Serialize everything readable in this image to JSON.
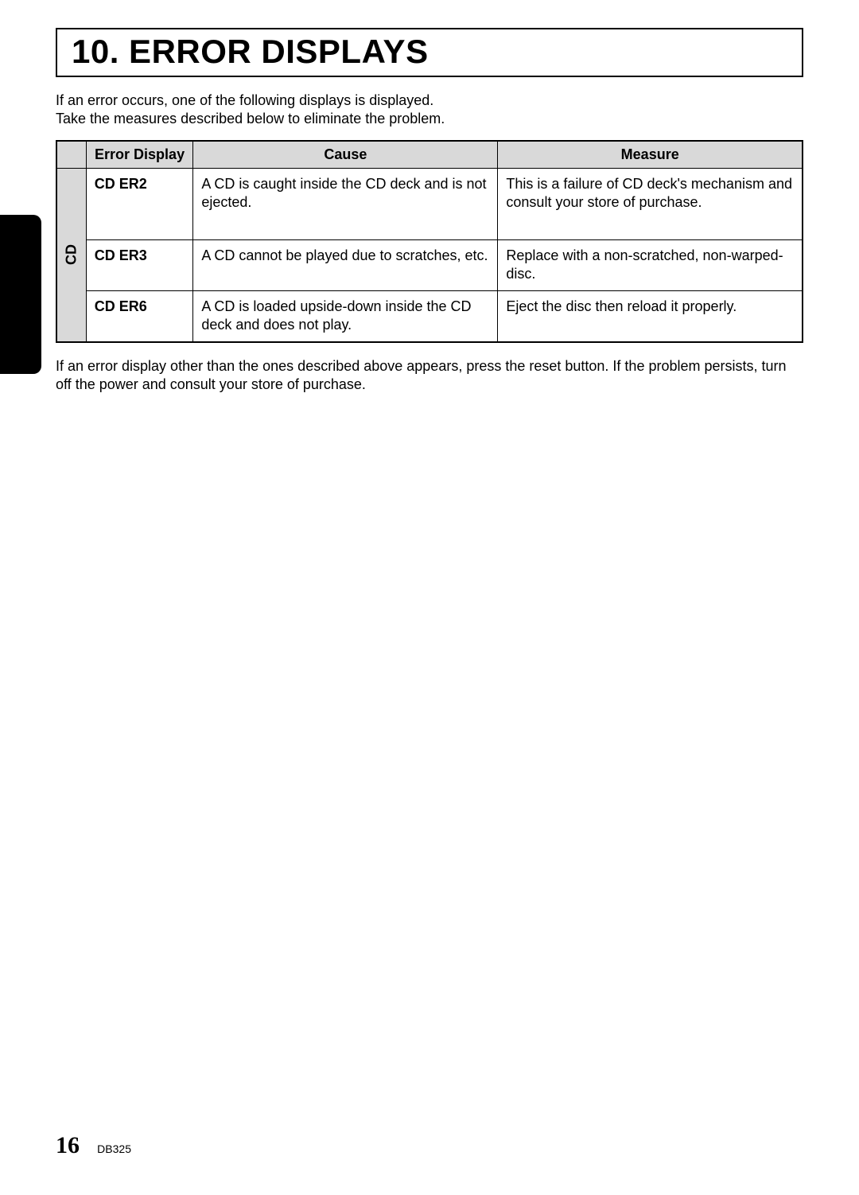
{
  "title": "10. ERROR DISPLAYS",
  "intro": {
    "line1": "If an error occurs, one of the following displays is displayed.",
    "line2": "Take the measures described below to eliminate the problem."
  },
  "table": {
    "headers": {
      "errorDisplay": "Error Display",
      "cause": "Cause",
      "measure": "Measure"
    },
    "groupLabel": "CD",
    "rows": [
      {
        "code": "CD ER2",
        "cause": "A CD is caught inside the CD deck and is not ejected.",
        "measure": "This is a failure of CD deck's mechanism and consult your store of purchase."
      },
      {
        "code": "CD ER3",
        "cause": "A CD cannot be played due to scratches, etc.",
        "measure": "Replace with a non-scratched, non-warped-disc."
      },
      {
        "code": "CD ER6",
        "cause": "A CD is loaded upside-down inside the CD deck and does not play.",
        "measure": "Eject the disc then reload it properly."
      }
    ]
  },
  "outro": "If an error display other than the ones described above appears, press the reset button. If the problem persists, turn off the power and consult your store of purchase.",
  "footer": {
    "pageNum": "16",
    "model": "DB325"
  }
}
